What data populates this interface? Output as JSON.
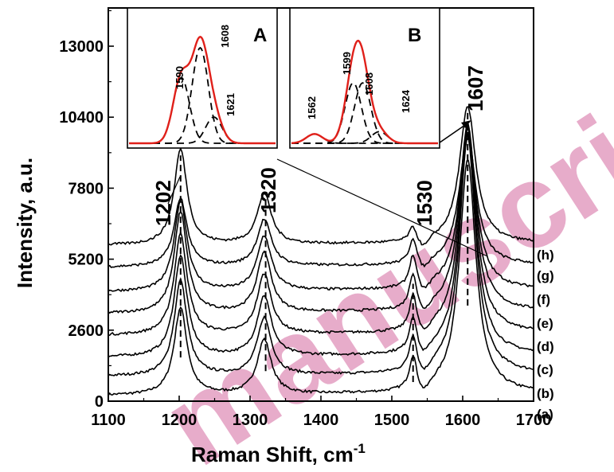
{
  "chart_data": {
    "type": "line",
    "xlabel": "Raman Shift, cm",
    "xlabel_sup": "-1",
    "ylabel": "Intensity, a.u.",
    "xlim": [
      1100,
      1700
    ],
    "ylim": [
      0,
      14400
    ],
    "x_ticks": [
      "1100",
      "1200",
      "1300",
      "1400",
      "1500",
      "1600",
      "1700"
    ],
    "y_ticks": [
      "0",
      "2600",
      "5200",
      "7800",
      "10400",
      "13000"
    ],
    "peak_labels": [
      "1202",
      "1320",
      "1530",
      "1607"
    ],
    "series_labels": [
      "(a)",
      "(b)",
      "(c)",
      "(d)",
      "(e)",
      "(f)",
      "(g)",
      "(h)"
    ],
    "peaks": [
      {
        "label": "1202",
        "position": 1202
      },
      {
        "label": "1320",
        "position": 1320
      },
      {
        "label": "1530",
        "position": 1530
      },
      {
        "label": "1607",
        "position": 1607
      }
    ],
    "series": [
      {
        "label": "(a)",
        "offset": 200,
        "peak_heights": [
          3200,
          2000,
          1200,
          8600
        ]
      },
      {
        "label": "(b)",
        "offset": 900,
        "peak_heights": [
          3500,
          2100,
          1250,
          8700
        ]
      },
      {
        "label": "(c)",
        "offset": 1600,
        "peak_heights": [
          3700,
          2200,
          1250,
          8200
        ]
      },
      {
        "label": "(d)",
        "offset": 2400,
        "peak_heights": [
          3700,
          2200,
          1250,
          7600
        ]
      },
      {
        "label": "(e)",
        "offset": 3200,
        "peak_heights": [
          3700,
          2200,
          1250,
          6900
        ]
      },
      {
        "label": "(f)",
        "offset": 4000,
        "peak_heights": [
          3300,
          2000,
          1150,
          5900
        ]
      },
      {
        "label": "(g)",
        "offset": 4900,
        "peak_heights": [
          2500,
          1700,
          900,
          4800
        ]
      },
      {
        "label": "(h)",
        "offset": 5700,
        "peak_heights": [
          3500,
          1850,
          500,
          5000
        ]
      }
    ],
    "insets": [
      {
        "title": "A",
        "peak_labels": [
          "1590",
          "1608",
          "1621"
        ],
        "components": [
          {
            "center": 1590,
            "height": 0.55
          },
          {
            "center": 1608,
            "height": 0.8
          },
          {
            "center": 1621,
            "height": 0.22
          }
        ],
        "envelope_color": "#e0201a"
      },
      {
        "title": "B",
        "peak_labels": [
          "1562",
          "1599",
          "1608",
          "1624"
        ],
        "components": [
          {
            "center": 1562,
            "height": 0.08
          },
          {
            "center": 1599,
            "height": 0.52
          },
          {
            "center": 1608,
            "height": 0.52
          },
          {
            "center": 1624,
            "height": 0.1
          }
        ],
        "envelope_color": "#e0201a"
      }
    ],
    "grid": false,
    "legend": "none"
  },
  "watermark": {
    "text": "manuscri",
    "color": "#d46aa0"
  }
}
